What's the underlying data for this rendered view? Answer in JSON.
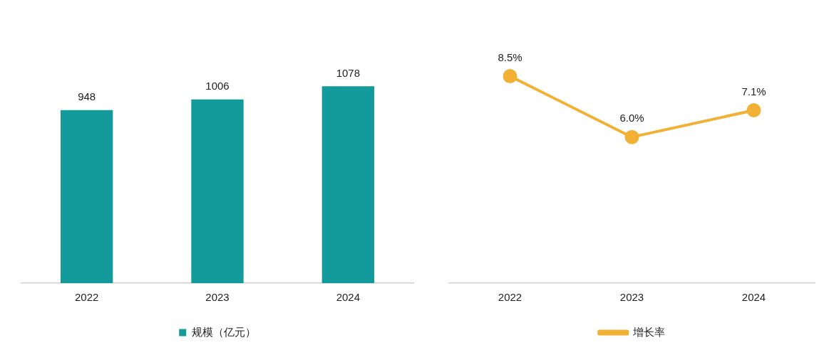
{
  "chart_data": [
    {
      "type": "bar",
      "categories": [
        "2022",
        "2023",
        "2024"
      ],
      "series": [
        {
          "name": "规模（亿元）",
          "color": "#139b9b",
          "values": [
            948,
            1006,
            1078
          ]
        }
      ],
      "tick_labels": "x",
      "data_labels": true,
      "grid": false,
      "legend": "bottom"
    },
    {
      "type": "line",
      "categories": [
        "2022",
        "2023",
        "2024"
      ],
      "series": [
        {
          "name": "增长率",
          "color": "#f2b135",
          "values": [
            8.5,
            6.0,
            7.1
          ],
          "value_labels": [
            "8.5%",
            "6.0%",
            "7.1%"
          ]
        }
      ],
      "tick_labels": "x",
      "grid": false,
      "legend": "bottom",
      "marker": "circle",
      "line_style": "solid"
    }
  ]
}
